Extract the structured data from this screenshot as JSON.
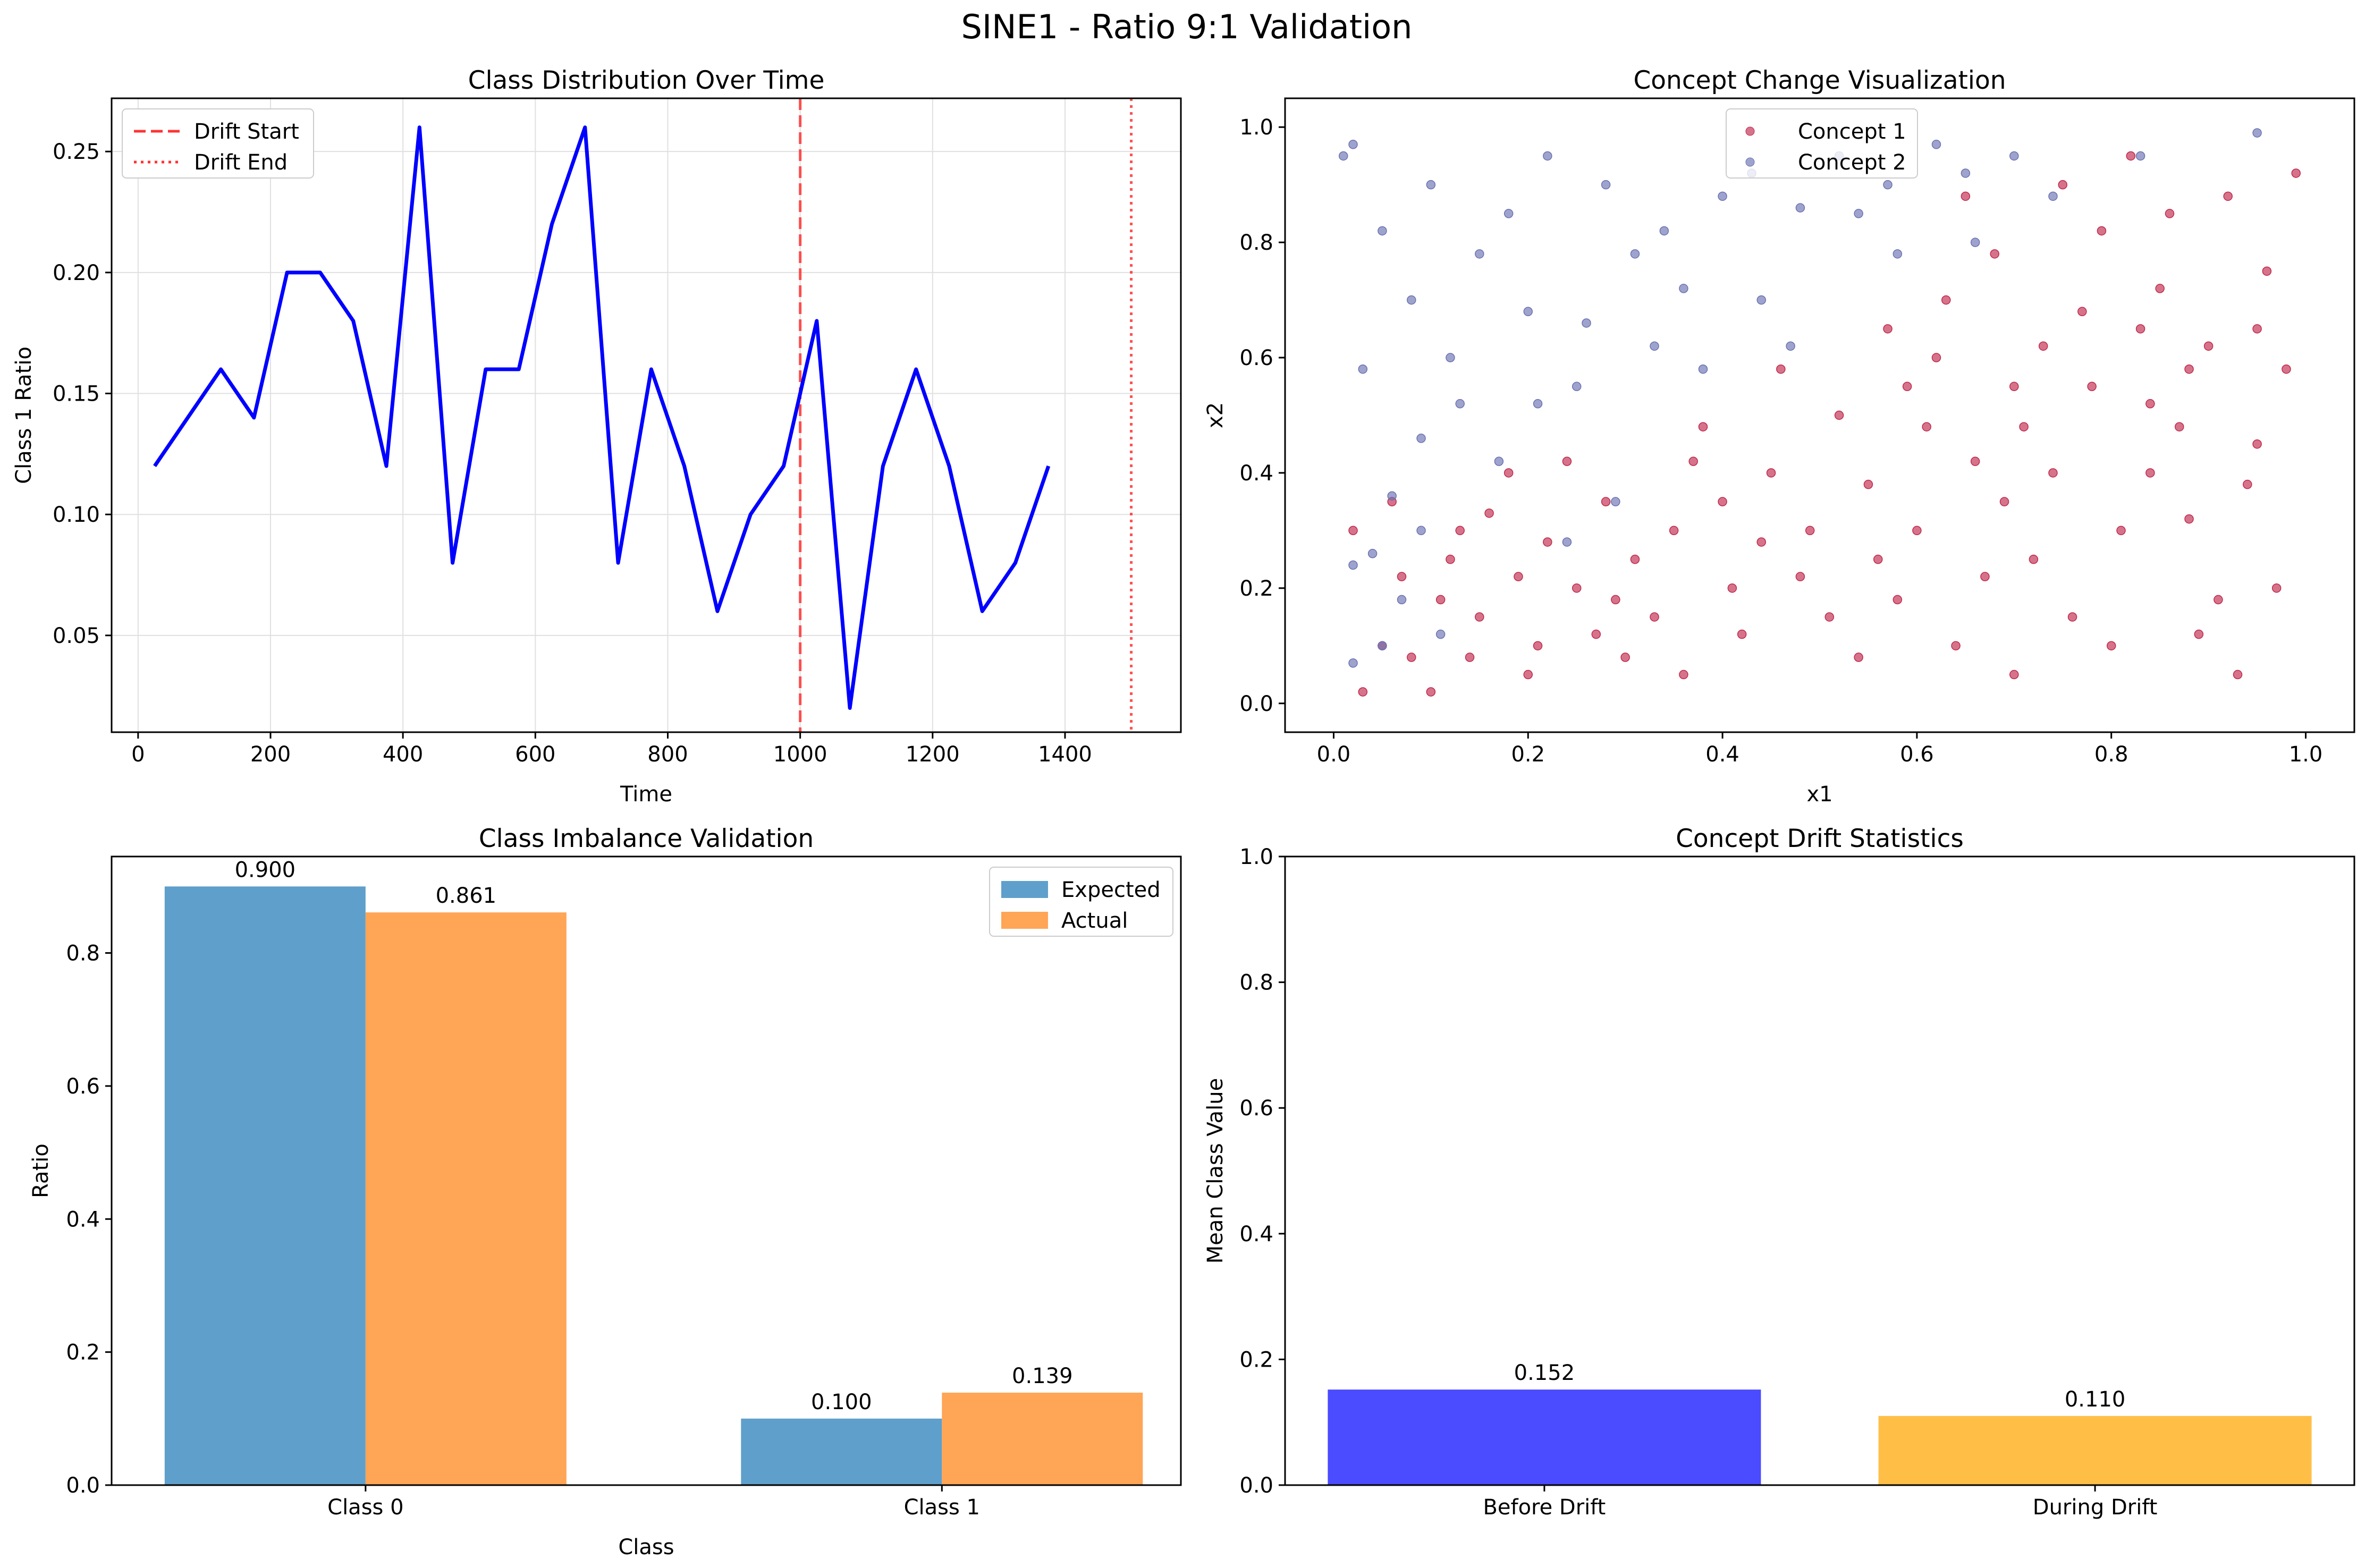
{
  "suptitle": "SINE1 - Ratio 9:1 Validation",
  "colors": {
    "line": "#0000ff",
    "drift_start": "#ff3333",
    "drift_end": "#ff3333",
    "expected": "#5f9fcb",
    "actual": "#ffa556",
    "concept1": "#c0284b",
    "concept2": "#6a72b2",
    "before_drift": "#4b4bff",
    "during_drift": "#ffbf47",
    "grid": "#e0e0e0"
  },
  "chart_data": [
    {
      "type": "line",
      "title": "Class Distribution Over Time",
      "xlabel": "Time",
      "ylabel": "Class 1 Ratio",
      "xlim": [
        -40,
        1575
      ],
      "ylim": [
        0.01,
        0.272
      ],
      "xticks": [
        0,
        200,
        400,
        600,
        800,
        1000,
        1200,
        1400
      ],
      "yticks": [
        0.05,
        0.1,
        0.15,
        0.2,
        0.25
      ],
      "ytick_labels": [
        "0.05",
        "0.10",
        "0.15",
        "0.20",
        "0.25"
      ],
      "grid": true,
      "legend_position": "top-left",
      "series": [
        {
          "x": [
            25,
            125,
            175,
            225,
            275,
            325,
            375,
            425,
            475,
            525,
            575,
            625,
            675,
            725,
            775,
            825,
            875,
            925,
            975,
            1025,
            1075,
            1125,
            1175,
            1225,
            1275,
            1325,
            1375
          ],
          "y": [
            0.12,
            0.16,
            0.14,
            0.2,
            0.2,
            0.18,
            0.12,
            0.26,
            0.08,
            0.16,
            0.16,
            0.22,
            0.26,
            0.08,
            0.16,
            0.12,
            0.06,
            0.1,
            0.12,
            0.18,
            0.02,
            0.12,
            0.16,
            0.12,
            0.06,
            0.08,
            0.12
          ]
        }
      ],
      "vlines": [
        {
          "name": "Drift Start",
          "x": 1000,
          "style": "dashed"
        },
        {
          "name": "Drift End",
          "x": 1500,
          "style": "dotted"
        }
      ]
    },
    {
      "type": "scatter",
      "title": "Concept Change Visualization",
      "xlabel": "x1",
      "ylabel": "x2",
      "xlim": [
        -0.05,
        1.05
      ],
      "ylim": [
        -0.05,
        1.05
      ],
      "xticks": [
        0.0,
        0.2,
        0.4,
        0.6,
        0.8,
        1.0
      ],
      "yticks": [
        0.0,
        0.2,
        0.4,
        0.6,
        0.8,
        1.0
      ],
      "xtick_labels": [
        "0.0",
        "0.2",
        "0.4",
        "0.6",
        "0.8",
        "1.0"
      ],
      "ytick_labels": [
        "0.0",
        "0.2",
        "0.4",
        "0.6",
        "0.8",
        "1.0"
      ],
      "grid": false,
      "legend_position": "top-center",
      "series": [
        {
          "name": "Concept 1",
          "points": [
            [
              0.92,
              0.88
            ],
            [
              0.85,
              0.72
            ],
            [
              0.78,
              0.55
            ],
            [
              0.95,
              0.45
            ],
            [
              0.88,
              0.32
            ],
            [
              0.72,
              0.25
            ],
            [
              0.66,
              0.42
            ],
            [
              0.58,
              0.18
            ],
            [
              0.62,
              0.6
            ],
            [
              0.55,
              0.38
            ],
            [
              0.48,
              0.22
            ],
            [
              0.42,
              0.12
            ],
            [
              0.35,
              0.3
            ],
            [
              0.3,
              0.08
            ],
            [
              0.25,
              0.2
            ],
            [
              0.2,
              0.05
            ],
            [
              0.15,
              0.15
            ],
            [
              0.1,
              0.02
            ],
            [
              0.05,
              0.1
            ],
            [
              0.02,
              0.3
            ],
            [
              0.68,
              0.78
            ],
            [
              0.75,
              0.9
            ],
            [
              0.82,
              0.95
            ],
            [
              0.9,
              0.62
            ],
            [
              0.97,
              0.2
            ],
            [
              0.93,
              0.05
            ],
            [
              0.8,
              0.1
            ],
            [
              0.7,
              0.05
            ],
            [
              0.6,
              0.3
            ],
            [
              0.52,
              0.5
            ],
            [
              0.45,
              0.4
            ],
            [
              0.38,
              0.48
            ],
            [
              0.33,
              0.15
            ],
            [
              0.28,
              0.35
            ],
            [
              0.22,
              0.28
            ],
            [
              0.18,
              0.4
            ],
            [
              0.12,
              0.25
            ],
            [
              0.08,
              0.08
            ],
            [
              0.64,
              0.1
            ],
            [
              0.74,
              0.4
            ],
            [
              0.84,
              0.52
            ],
            [
              0.96,
              0.75
            ],
            [
              0.99,
              0.92
            ],
            [
              0.86,
              0.85
            ],
            [
              0.77,
              0.68
            ],
            [
              0.57,
              0.65
            ],
            [
              0.49,
              0.3
            ],
            [
              0.41,
              0.2
            ],
            [
              0.36,
              0.05
            ],
            [
              0.27,
              0.12
            ],
            [
              0.19,
              0.22
            ],
            [
              0.14,
              0.08
            ],
            [
              0.06,
              0.35
            ],
            [
              0.03,
              0.02
            ],
            [
              0.7,
              0.55
            ],
            [
              0.81,
              0.3
            ],
            [
              0.89,
              0.12
            ],
            [
              0.94,
              0.38
            ],
            [
              0.98,
              0.58
            ],
            [
              0.87,
              0.48
            ],
            [
              0.79,
              0.82
            ],
            [
              0.73,
              0.62
            ],
            [
              0.67,
              0.22
            ],
            [
              0.61,
              0.48
            ],
            [
              0.54,
              0.08
            ],
            [
              0.46,
              0.58
            ],
            [
              0.4,
              0.35
            ],
            [
              0.31,
              0.25
            ],
            [
              0.24,
              0.42
            ],
            [
              0.16,
              0.33
            ],
            [
              0.11,
              0.18
            ],
            [
              0.65,
              0.88
            ],
            [
              0.83,
              0.65
            ],
            [
              0.91,
              0.18
            ],
            [
              0.76,
              0.15
            ],
            [
              0.69,
              0.35
            ],
            [
              0.59,
              0.55
            ],
            [
              0.51,
              0.15
            ],
            [
              0.44,
              0.28
            ],
            [
              0.37,
              0.42
            ],
            [
              0.29,
              0.18
            ],
            [
              0.21,
              0.1
            ],
            [
              0.13,
              0.3
            ],
            [
              0.07,
              0.22
            ],
            [
              0.71,
              0.48
            ],
            [
              0.84,
              0.4
            ],
            [
              0.95,
              0.65
            ],
            [
              0.88,
              0.58
            ],
            [
              0.63,
              0.7
            ],
            [
              0.56,
              0.25
            ]
          ]
        },
        {
          "name": "Concept 2",
          "points": [
            [
              0.01,
              0.95
            ],
            [
              0.02,
              0.97
            ],
            [
              0.05,
              0.82
            ],
            [
              0.08,
              0.7
            ],
            [
              0.1,
              0.9
            ],
            [
              0.12,
              0.6
            ],
            [
              0.15,
              0.78
            ],
            [
              0.18,
              0.85
            ],
            [
              0.2,
              0.68
            ],
            [
              0.22,
              0.95
            ],
            [
              0.26,
              0.66
            ],
            [
              0.28,
              0.9
            ],
            [
              0.31,
              0.78
            ],
            [
              0.34,
              0.82
            ],
            [
              0.36,
              0.72
            ],
            [
              0.4,
              0.88
            ],
            [
              0.43,
              0.92
            ],
            [
              0.48,
              0.86
            ],
            [
              0.52,
              0.95
            ],
            [
              0.57,
              0.9
            ],
            [
              0.62,
              0.97
            ],
            [
              0.65,
              0.92
            ],
            [
              0.7,
              0.95
            ],
            [
              0.74,
              0.88
            ],
            [
              0.83,
              0.95
            ],
            [
              0.95,
              0.99
            ],
            [
              0.03,
              0.58
            ],
            [
              0.06,
              0.36
            ],
            [
              0.09,
              0.46
            ],
            [
              0.13,
              0.52
            ],
            [
              0.17,
              0.42
            ],
            [
              0.25,
              0.55
            ],
            [
              0.29,
              0.35
            ],
            [
              0.33,
              0.62
            ],
            [
              0.38,
              0.58
            ],
            [
              0.44,
              0.7
            ],
            [
              0.47,
              0.62
            ],
            [
              0.54,
              0.85
            ],
            [
              0.58,
              0.78
            ],
            [
              0.66,
              0.8
            ],
            [
              0.02,
              0.07
            ],
            [
              0.04,
              0.26
            ],
            [
              0.07,
              0.18
            ],
            [
              0.11,
              0.12
            ],
            [
              0.21,
              0.52
            ],
            [
              0.24,
              0.28
            ],
            [
              0.02,
              0.24
            ],
            [
              0.05,
              0.1
            ],
            [
              0.09,
              0.3
            ]
          ]
        }
      ]
    },
    {
      "type": "bar",
      "title": "Class Imbalance Validation",
      "xlabel": "Class",
      "ylabel": "Ratio",
      "ylim": [
        0,
        0.945
      ],
      "yticks": [
        0.0,
        0.2,
        0.4,
        0.6,
        0.8
      ],
      "ytick_labels": [
        "0.0",
        "0.2",
        "0.4",
        "0.6",
        "0.8"
      ],
      "grid": false,
      "legend_position": "top-right",
      "categories": [
        "Class 0",
        "Class 1"
      ],
      "series": [
        {
          "name": "Expected",
          "values": [
            0.9,
            0.1
          ],
          "labels": [
            "0.900",
            "0.100"
          ]
        },
        {
          "name": "Actual",
          "values": [
            0.861,
            0.139
          ],
          "labels": [
            "0.861",
            "0.139"
          ]
        }
      ]
    },
    {
      "type": "bar",
      "title": "Concept Drift Statistics",
      "xlabel": "",
      "ylabel": "Mean Class Value",
      "ylim": [
        0,
        1.0
      ],
      "yticks": [
        0.0,
        0.2,
        0.4,
        0.6,
        0.8,
        1.0
      ],
      "ytick_labels": [
        "0.0",
        "0.2",
        "0.4",
        "0.6",
        "0.8",
        "1.0"
      ],
      "grid": false,
      "categories": [
        "Before Drift",
        "During Drift"
      ],
      "values": [
        0.152,
        0.11
      ],
      "labels": [
        "0.152",
        "0.110"
      ]
    }
  ]
}
